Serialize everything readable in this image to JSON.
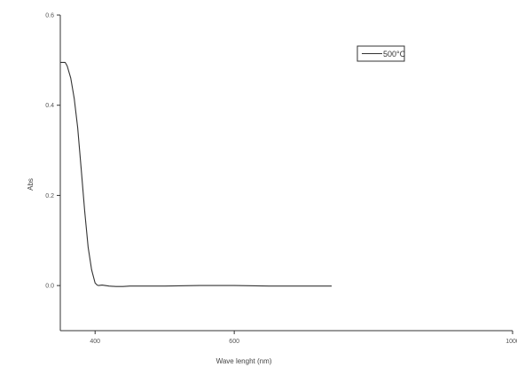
{
  "chart_data": {
    "type": "line",
    "xlabel": "Wave lenght (nm)",
    "ylabel": "Abs",
    "xlim": [
      350,
      1000
    ],
    "ylim": [
      -0.1,
      0.6
    ],
    "x_ticks": [
      {
        "value": 400,
        "label": "400"
      },
      {
        "value": 600,
        "label": "600"
      },
      {
        "value": 1000,
        "label": "1000"
      }
    ],
    "y_ticks": [
      {
        "value": 0.0,
        "label": "0.0"
      },
      {
        "value": 0.2,
        "label": "0.2"
      },
      {
        "value": 0.4,
        "label": "0.4"
      },
      {
        "value": 0.6,
        "label": "0.6"
      }
    ],
    "grid": false,
    "legend_position": "top-right",
    "series": [
      {
        "name": "500°C",
        "color": "#333333",
        "x": [
          350,
          357,
          360,
          365,
          370,
          375,
          380,
          385,
          390,
          395,
          400,
          403,
          405,
          410,
          420,
          430,
          440,
          450,
          500,
          550,
          600,
          650,
          700,
          740
        ],
        "y": [
          0.495,
          0.495,
          0.487,
          0.46,
          0.415,
          0.35,
          0.26,
          0.165,
          0.085,
          0.035,
          0.006,
          0.001,
          0.0,
          0.001,
          -0.001,
          -0.002,
          -0.002,
          -0.001,
          -0.001,
          0.0,
          0.0,
          -0.001,
          -0.001,
          -0.001
        ]
      }
    ]
  }
}
